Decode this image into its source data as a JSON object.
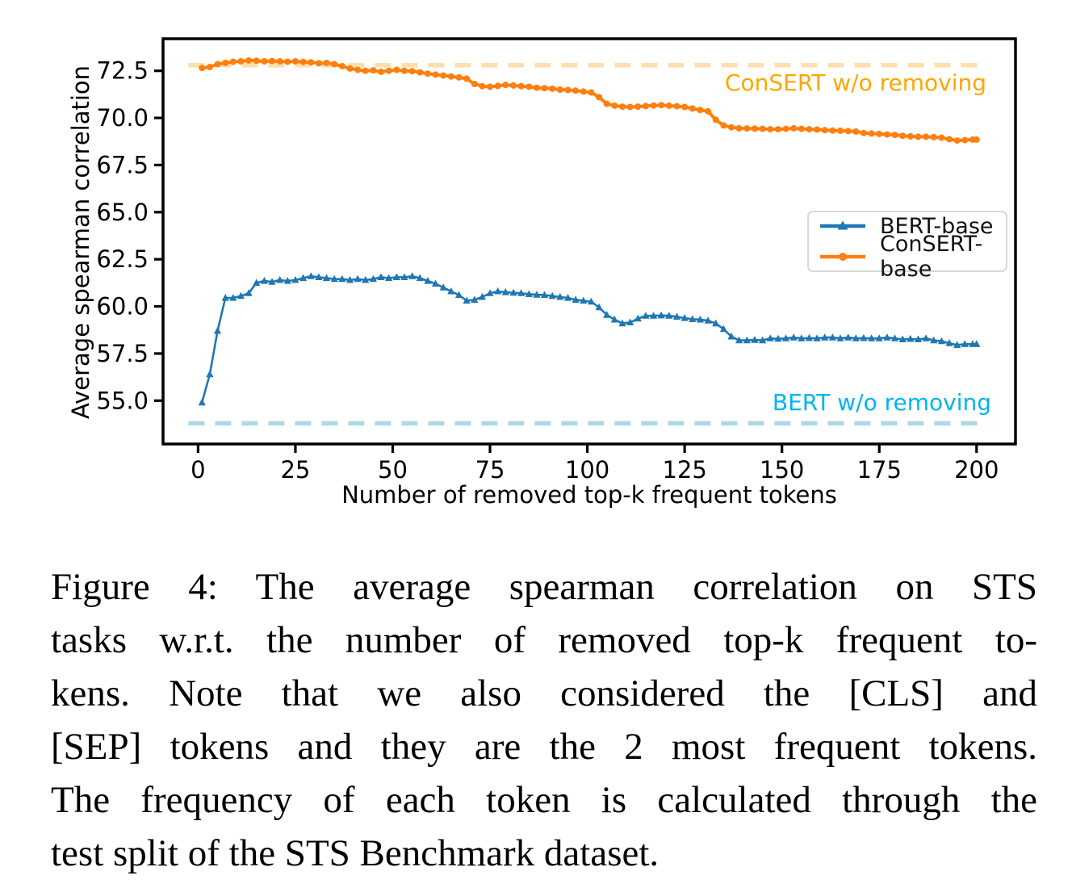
{
  "figure": {
    "caption_lines": [
      "Figure 4:  The average spearman correlation on STS",
      "tasks w.r.t.  the number of removed top-k frequent to-",
      "kens.   Note  that  we  also  considered  the  [CLS]  and",
      "[SEP] tokens and they are the 2 most frequent tokens.",
      "The frequency of each token is calculated through the",
      "test split of the STS Benchmark dataset."
    ]
  },
  "chart_data": {
    "type": "line",
    "title": "",
    "xlabel": "Number of removed top-k frequent tokens",
    "ylabel": "Average spearman correlation",
    "xlim": [
      -9,
      210
    ],
    "ylim": [
      52.7,
      74.2
    ],
    "xticks": [
      0,
      25,
      50,
      75,
      100,
      125,
      150,
      175,
      200
    ],
    "yticks": [
      55.0,
      57.5,
      60.0,
      62.5,
      65.0,
      67.5,
      70.0,
      72.5
    ],
    "ytick_labels": [
      "55.0",
      "57.5",
      "60.0",
      "62.5",
      "65.0",
      "67.5",
      "70.0",
      "72.5"
    ],
    "grid": false,
    "legend_position": "center right",
    "x": [
      1,
      3,
      5,
      7,
      9,
      11,
      13,
      15,
      17,
      19,
      21,
      23,
      25,
      27,
      29,
      31,
      33,
      35,
      37,
      39,
      41,
      43,
      45,
      47,
      49,
      51,
      53,
      55,
      57,
      59,
      61,
      63,
      65,
      67,
      69,
      71,
      73,
      75,
      77,
      79,
      81,
      83,
      85,
      87,
      89,
      91,
      93,
      95,
      97,
      99,
      101,
      103,
      105,
      107,
      109,
      111,
      113,
      115,
      117,
      119,
      121,
      123,
      125,
      127,
      129,
      131,
      133,
      135,
      137,
      139,
      141,
      143,
      145,
      147,
      149,
      151,
      153,
      155,
      157,
      159,
      161,
      163,
      165,
      167,
      169,
      171,
      173,
      175,
      177,
      179,
      181,
      183,
      185,
      187,
      189,
      191,
      193,
      195,
      197,
      199,
      200
    ],
    "series": [
      {
        "name": "BERT-base",
        "color": "#1f77b4",
        "marker": "triangle",
        "values": [
          54.9,
          56.4,
          58.7,
          60.45,
          60.45,
          60.55,
          60.7,
          61.25,
          61.35,
          61.3,
          61.4,
          61.35,
          61.4,
          61.5,
          61.6,
          61.55,
          61.5,
          61.45,
          61.45,
          61.4,
          61.45,
          61.4,
          61.45,
          61.55,
          61.5,
          61.55,
          61.55,
          61.6,
          61.5,
          61.35,
          61.2,
          61.0,
          60.8,
          60.6,
          60.3,
          60.35,
          60.5,
          60.7,
          60.8,
          60.75,
          60.72,
          60.7,
          60.65,
          60.62,
          60.6,
          60.55,
          60.5,
          60.45,
          60.35,
          60.3,
          60.25,
          59.95,
          59.55,
          59.3,
          59.1,
          59.15,
          59.35,
          59.5,
          59.5,
          59.52,
          59.5,
          59.45,
          59.38,
          59.32,
          59.3,
          59.25,
          59.1,
          58.8,
          58.4,
          58.2,
          58.2,
          58.22,
          58.2,
          58.3,
          58.28,
          58.3,
          58.35,
          58.3,
          58.32,
          58.3,
          58.35,
          58.35,
          58.3,
          58.35,
          58.3,
          58.32,
          58.3,
          58.3,
          58.35,
          58.3,
          58.25,
          58.27,
          58.25,
          58.3,
          58.2,
          58.15,
          58.05,
          57.95,
          58.0,
          58.0,
          58.0
        ]
      },
      {
        "name": "ConSERT-base",
        "color": "#ff7f0e",
        "marker": "circle",
        "values": [
          72.65,
          72.7,
          72.85,
          72.92,
          72.98,
          73.0,
          73.05,
          73.03,
          73.0,
          73.02,
          73.0,
          72.98,
          73.0,
          72.97,
          72.95,
          72.9,
          72.92,
          72.85,
          72.75,
          72.62,
          72.55,
          72.5,
          72.52,
          72.45,
          72.5,
          72.55,
          72.5,
          72.48,
          72.42,
          72.35,
          72.3,
          72.25,
          72.2,
          72.15,
          72.08,
          71.8,
          71.68,
          71.65,
          71.7,
          71.75,
          71.72,
          71.68,
          71.65,
          71.6,
          71.58,
          71.55,
          71.5,
          71.48,
          71.45,
          71.4,
          71.35,
          71.1,
          70.75,
          70.65,
          70.6,
          70.58,
          70.6,
          70.63,
          70.66,
          70.68,
          70.65,
          70.62,
          70.58,
          70.5,
          70.42,
          70.35,
          69.9,
          69.6,
          69.5,
          69.45,
          69.44,
          69.43,
          69.42,
          69.4,
          69.4,
          69.42,
          69.45,
          69.42,
          69.4,
          69.38,
          69.35,
          69.33,
          69.32,
          69.3,
          69.28,
          69.2,
          69.17,
          69.15,
          69.12,
          69.1,
          69.05,
          69.02,
          69.0,
          69.0,
          68.98,
          68.95,
          68.87,
          68.8,
          68.82,
          68.85,
          68.85
        ]
      }
    ],
    "baselines": [
      {
        "label": "ConSERT w/o removing",
        "value": 72.8,
        "line_color": "#ffdead",
        "text_color": "#ffa500"
      },
      {
        "label": "BERT w/o removing",
        "value": 53.8,
        "line_color": "#add8e6",
        "text_color": "#00b4f0"
      }
    ]
  }
}
